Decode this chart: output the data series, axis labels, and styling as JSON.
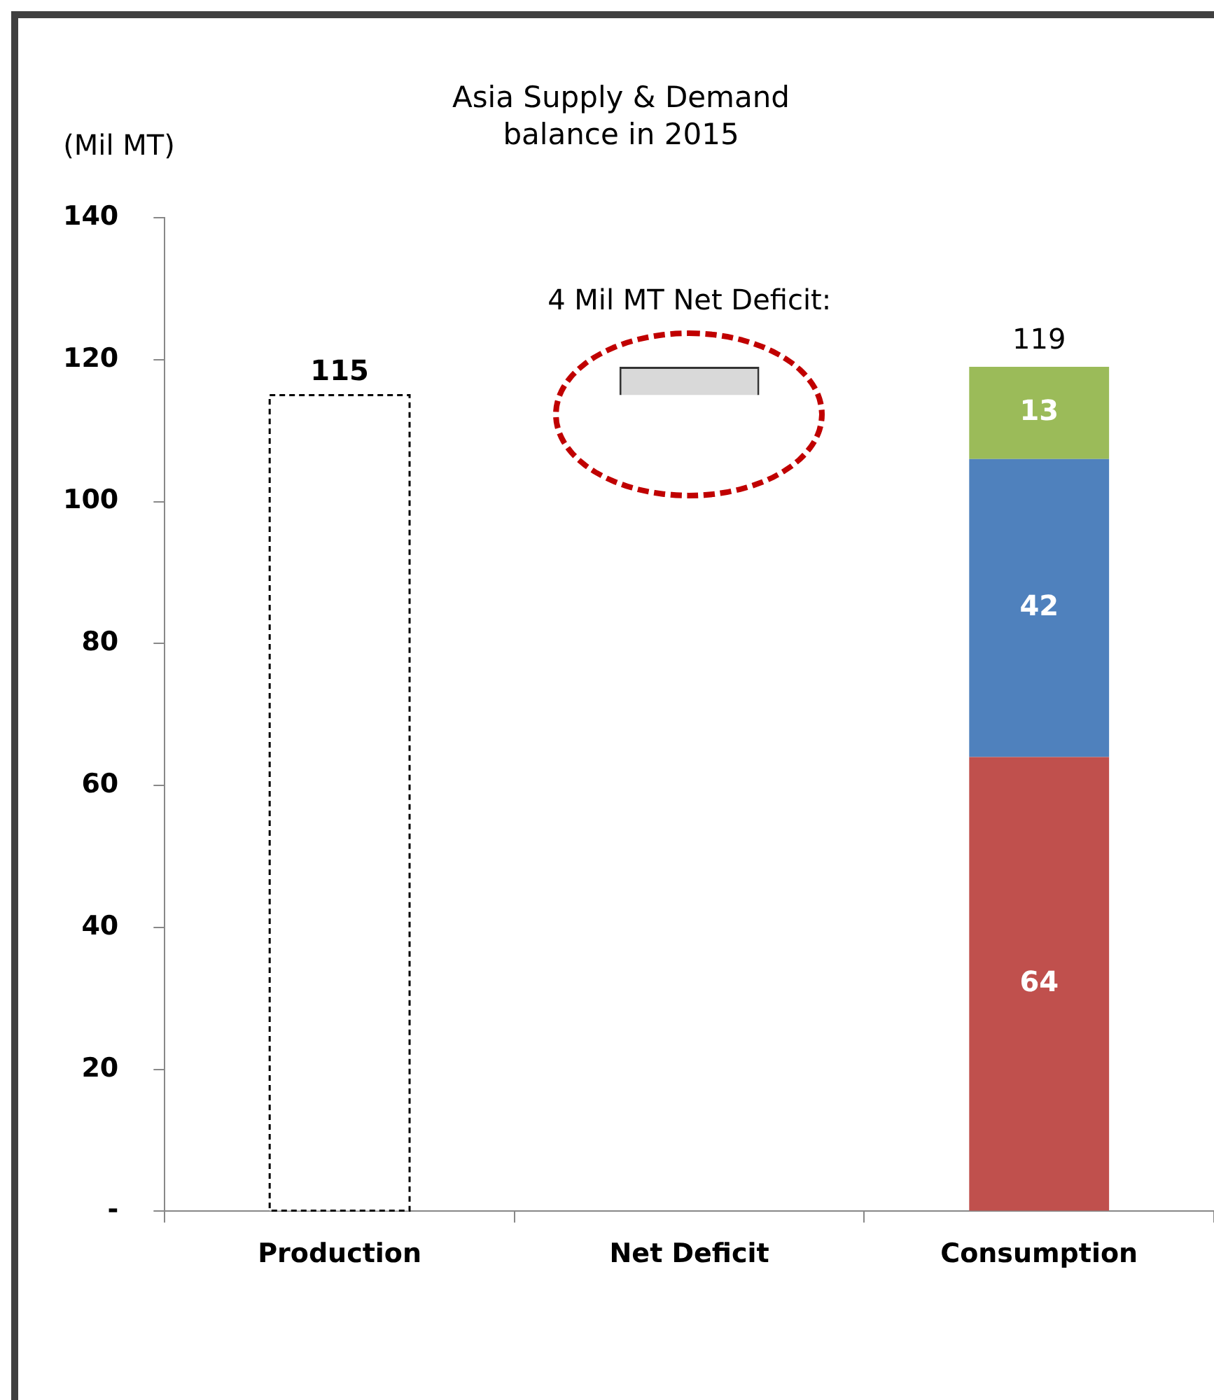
{
  "chart_data": {
    "type": "bar",
    "title": "Asia Supply & Demand\nbalance in 2015",
    "ylabel": "(Mil MT)",
    "categories": [
      "Production",
      "Net Deficit",
      "Consumption"
    ],
    "stacked": true,
    "series": [
      {
        "color": "#ffffff",
        "line_style": "dashed",
        "values": [
          115,
          null,
          null
        ],
        "value_labels": [
          "115",
          null,
          null
        ]
      },
      {
        "color": "#d9d9d9",
        "line_style": "solid",
        "base": [
          null,
          115,
          null
        ],
        "values": [
          null,
          4,
          null
        ]
      },
      {
        "color": "#c0504d",
        "values": [
          null,
          null,
          64
        ],
        "value_labels": [
          null,
          null,
          "64"
        ]
      },
      {
        "color": "#4f81bd",
        "values": [
          null,
          null,
          42
        ],
        "value_labels": [
          null,
          null,
          "42"
        ]
      },
      {
        "color": "#9bbb59",
        "values": [
          null,
          null,
          13
        ],
        "value_labels": [
          null,
          null,
          "13"
        ]
      }
    ],
    "totals": [
      null,
      null,
      "119"
    ],
    "annotations": [
      {
        "text": "4 Mil MT Net Deficit:",
        "x": "Net Deficit",
        "y": 119
      }
    ],
    "ylim": [
      0,
      140
    ],
    "yticks": [
      {
        "value": 0,
        "label": "-"
      },
      20,
      40,
      60,
      80,
      100,
      120,
      140
    ],
    "grid": false,
    "legend": false
  }
}
